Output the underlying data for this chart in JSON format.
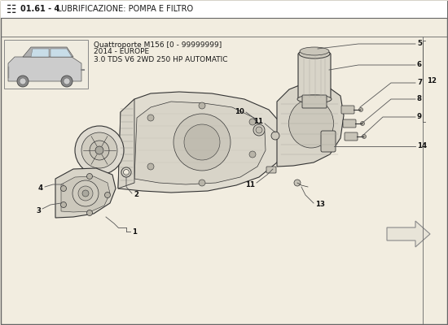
{
  "title_bold": "01.61 - 4",
  "title_rest": " LUBRIFICAZIONE: POMPA E FILTRO",
  "model_line1": "Quattroporte M156 [0 - 99999999]",
  "model_line2": "2014 - EUROPE",
  "model_line3": "3.0 TDS V6 2WD 250 HP AUTOMATIC",
  "bg_color": "#f2ede0",
  "border_color": "#666666",
  "text_color": "#1a1a1a",
  "line_color": "#444444",
  "draw_color": "#333333",
  "light_fill": "#e8e4d8",
  "mid_fill": "#d0ccc0",
  "dark_fill": "#aaa89e"
}
